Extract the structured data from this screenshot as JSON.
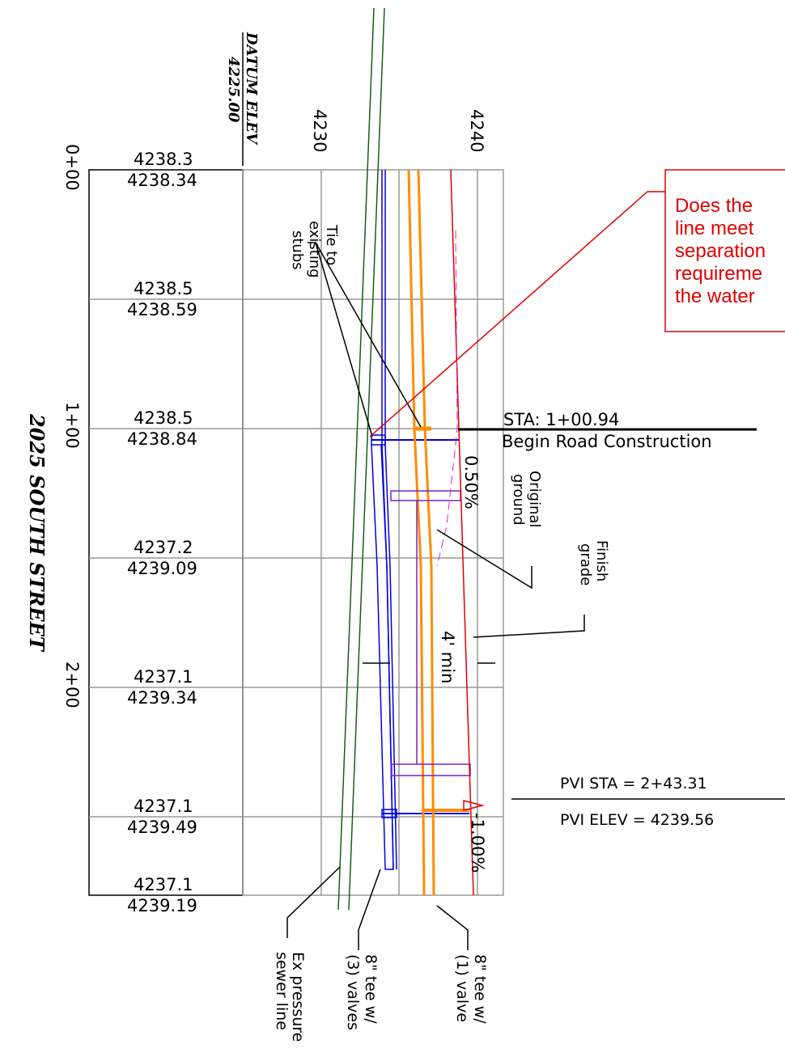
{
  "datum": {
    "label": "DATUM ELEV",
    "value": "4225.00"
  },
  "elevation_axis": [
    "4230",
    "4240"
  ],
  "stations": [
    "0+00",
    "1+00",
    "2+00"
  ],
  "street": "2025 SOUTH STREET",
  "elevations": [
    [
      "4238.3",
      "4238.34"
    ],
    [
      "4238.5",
      "4238.59"
    ],
    [
      "4238.5",
      "4238.84"
    ],
    [
      "4237.2",
      "4239.09"
    ],
    [
      "4237.1",
      "4239.34"
    ],
    [
      "4237.1",
      "4239.49"
    ],
    [
      "4237.1",
      "4239.19"
    ]
  ],
  "question": [
    "Does the",
    "line meet",
    "separation",
    "requireme",
    "the water"
  ],
  "notes": {
    "tie": [
      "Tie to",
      "existing",
      "stubs"
    ],
    "sta": "STA:  1+00.94",
    "begin": "Begin  Road  Construction",
    "grade1": "0.50%",
    "original": [
      "Original",
      "ground"
    ],
    "finish": [
      "Finish",
      "grade"
    ],
    "min": "4'  min",
    "pvi_sta": "PVI  STA   =  2+43.31",
    "pvi_elev": "PVI  ELEV  =  4239.56",
    "grade2": "-1.00%",
    "sewer": [
      "Ex  pressure",
      "sewer  line"
    ],
    "tee3": [
      "8\"  tee  w/",
      "(3)  valves"
    ],
    "tee1": [
      "8\"  tee  w/",
      "(1)  valve"
    ]
  }
}
